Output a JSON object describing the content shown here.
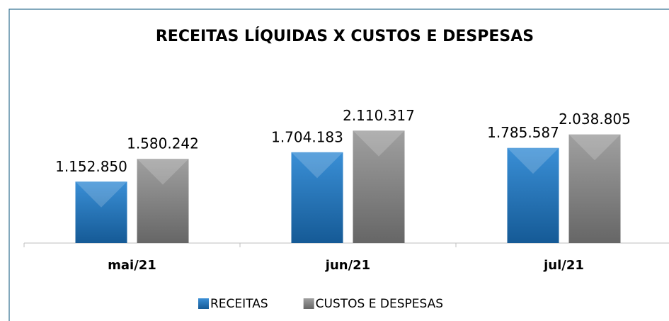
{
  "chart_data": {
    "type": "bar",
    "title": "RECEITAS LÍQUIDAS X CUSTOS E DESPESAS",
    "categories": [
      "mai/21",
      "jun/21",
      "jul/21"
    ],
    "series": [
      {
        "name": "RECEITAS",
        "color": "#1c6db3",
        "values": [
          1152850,
          1704183,
          1785587
        ],
        "value_labels": [
          "1.152.850",
          "1.704.183",
          "1.785.587"
        ]
      },
      {
        "name": "CUSTOS E DESPESAS",
        "color": "#7a7a7a",
        "values": [
          1580242,
          2110317,
          2038805
        ],
        "value_labels": [
          "1.580.242",
          "2.110.317",
          "2.038.805"
        ]
      }
    ],
    "ylim": [
      0,
      2500000
    ],
    "legend": "bottom"
  }
}
